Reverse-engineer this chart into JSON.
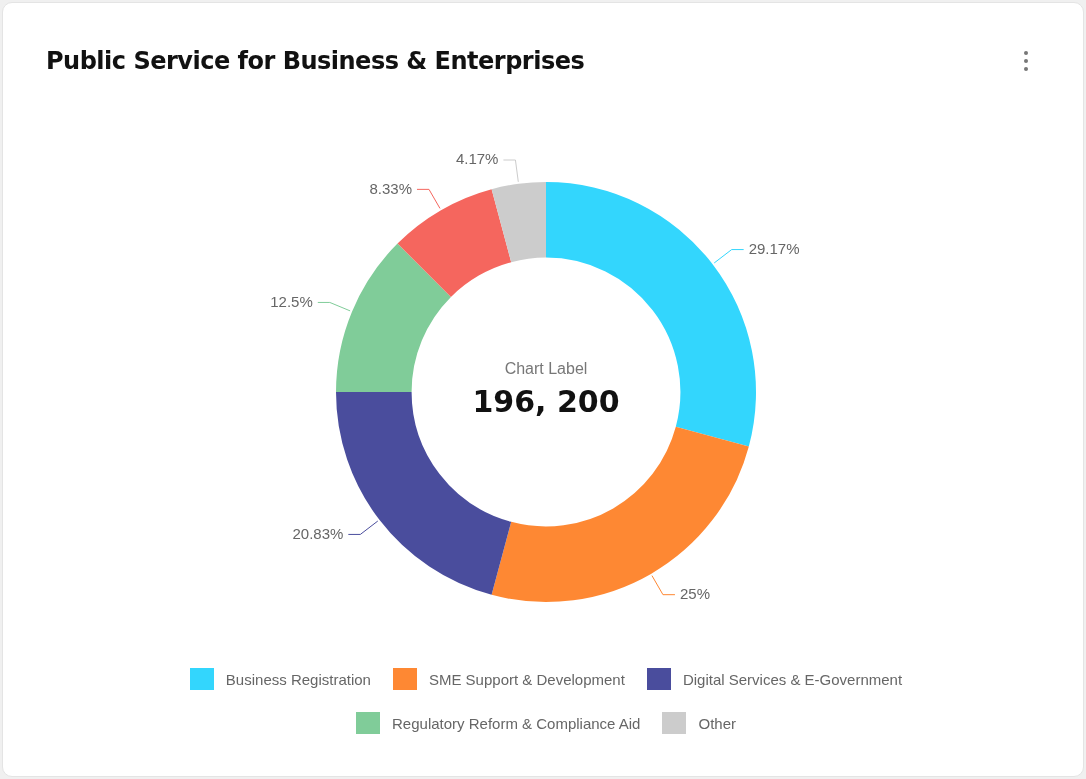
{
  "chart_data": {
    "type": "donut",
    "title": "Public Service for Business & Enterprises",
    "categories": [
      "Business Registration",
      "SME Support & Development",
      "Digital Services & E-Government",
      "Regulatory Reform & Compliance Aid",
      null,
      "Other"
    ],
    "values": [
      29.17,
      25,
      20.83,
      12.5,
      8.33,
      4.17
    ],
    "colors": [
      "#33d6fd",
      "#fe8833",
      "#4a4d9d",
      "#80cc99",
      "#f5665e",
      "#cccccc"
    ],
    "value_labels": [
      "29.17%",
      "25%",
      "20.83%",
      "12.5%",
      "8.33%",
      "4.17%"
    ],
    "annotations": [
      "Chart Label",
      "196, 200"
    ],
    "legend": "bottom"
  }
}
